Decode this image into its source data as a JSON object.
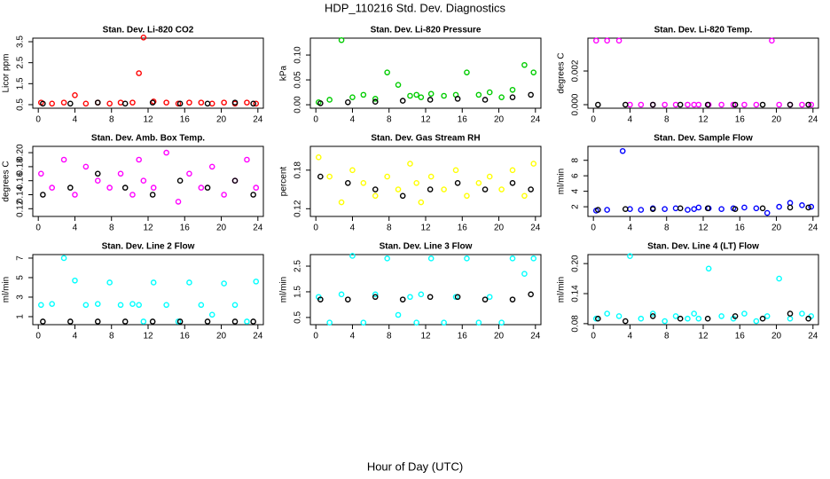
{
  "title": "HDP_110216  Std. Dev. Diagnostics",
  "x_label": "Hour of Day (UTC)",
  "chart_data": [
    {
      "type": "scatter",
      "title": "Stan. Dev. Li-820 CO2",
      "y_label": "Licor ppm",
      "xlim": [
        -0.6,
        24.6
      ],
      "xticks": [
        0,
        4,
        8,
        12,
        16,
        20,
        24
      ],
      "ylim": [
        0.33,
        3.67
      ],
      "yticks": [
        0.5,
        1.5,
        2.5,
        3.5
      ],
      "series": [
        {
          "color": "#ff0000",
          "x": [
            0.3,
            1.5,
            2.8,
            4,
            5.2,
            6.5,
            7.8,
            9,
            10.3,
            11,
            11.5,
            12.6,
            14,
            15.3,
            16.5,
            17.8,
            19,
            20.3,
            21.5,
            22.8,
            23.8
          ],
          "values": [
            0.6,
            0.55,
            0.6,
            0.95,
            0.55,
            0.6,
            0.55,
            0.6,
            0.6,
            2.0,
            3.7,
            0.65,
            0.6,
            0.55,
            0.6,
            0.6,
            0.55,
            0.6,
            0.55,
            0.6,
            0.55
          ]
        },
        {
          "color": "#000000",
          "x": [
            0.5,
            3.5,
            6.5,
            9.5,
            12.5,
            15.5,
            18.5,
            21.5,
            23.5
          ],
          "values": [
            0.55,
            0.55,
            0.6,
            0.55,
            0.6,
            0.55,
            0.55,
            0.6,
            0.55
          ]
        }
      ]
    },
    {
      "type": "scatter",
      "title": "Stan. Dev. Li-820 Pressure",
      "y_label": "kPa",
      "xlim": [
        -0.6,
        24.6
      ],
      "xticks": [
        0,
        4,
        8,
        12,
        16,
        20,
        24
      ],
      "ylim": [
        -0.007,
        0.134
      ],
      "yticks": [
        {
          "value": 0,
          "label": "0.00"
        },
        0.05,
        {
          "value": 0.1,
          "label": "0.10"
        }
      ],
      "series": [
        {
          "color": "#00cc00",
          "x": [
            0.3,
            1.5,
            2.8,
            4,
            5.2,
            6.5,
            7.8,
            9,
            10.3,
            11,
            11.5,
            12.6,
            14,
            15.3,
            16.5,
            17.8,
            19,
            20.3,
            21.5,
            22.8,
            23.8
          ],
          "values": [
            0.005,
            0.01,
            0.13,
            0.015,
            0.02,
            0.012,
            0.065,
            0.04,
            0.018,
            0.02,
            0.015,
            0.022,
            0.018,
            0.02,
            0.065,
            0.02,
            0.025,
            0.015,
            0.03,
            0.08,
            0.065
          ]
        },
        {
          "color": "#000000",
          "x": [
            0.5,
            3.5,
            6.5,
            9.5,
            12.5,
            15.5,
            18.5,
            21.5,
            23.5
          ],
          "values": [
            0.003,
            0.005,
            0.006,
            0.008,
            0.01,
            0.012,
            0.01,
            0.015,
            0.02
          ]
        }
      ]
    },
    {
      "type": "scatter",
      "title": "Stan. Dev. Li-820 Temp.",
      "y_label": "degrees C",
      "xlim": [
        -0.6,
        24.6
      ],
      "xticks": [
        0,
        4,
        8,
        12,
        16,
        20,
        24
      ],
      "ylim": [
        -0.00021,
        0.00395
      ],
      "yticks": [
        {
          "value": 0,
          "label": "0.000"
        },
        0.002
      ],
      "series": [
        {
          "color": "#ff00ff",
          "x": [
            0.3,
            1.5,
            2.8,
            4,
            5.2,
            6.5,
            7.8,
            9,
            10.3,
            11,
            11.5,
            12.6,
            14,
            15.3,
            16.5,
            17.8,
            19.5,
            20.3,
            21.5,
            22.8,
            23.8
          ],
          "values": [
            0.0038,
            0.0038,
            0.0038,
            0,
            0,
            0,
            0,
            0,
            0,
            0,
            0,
            0,
            0,
            0,
            0,
            0,
            0.0038,
            0,
            0,
            0,
            0
          ]
        },
        {
          "color": "#000000",
          "x": [
            0.5,
            3.5,
            6.5,
            9.5,
            12.5,
            15.5,
            18.5,
            21.5,
            23.5
          ],
          "values": [
            0,
            0,
            0,
            0,
            0,
            0,
            0,
            0,
            0
          ]
        }
      ]
    },
    {
      "type": "scatter",
      "title": "Stan. Dev. Amb. Box Temp.",
      "y_label": "degrees C",
      "xlim": [
        -0.6,
        24.6
      ],
      "xticks": [
        0,
        4,
        8,
        12,
        16,
        20,
        24
      ],
      "ylim": [
        0.109,
        0.209
      ],
      "yticks": [
        0.12,
        0.14,
        0.16,
        0.18,
        {
          "value": 0.2,
          "label": "0.20"
        }
      ],
      "series": [
        {
          "color": "#ff00ff",
          "x": [
            0.3,
            1.5,
            2.8,
            4,
            5.2,
            6.5,
            7.8,
            9,
            10.3,
            11,
            11.5,
            12.6,
            14,
            15.3,
            16.5,
            17.8,
            19,
            20.3,
            21.5,
            22.8,
            23.8
          ],
          "values": [
            0.17,
            0.15,
            0.19,
            0.14,
            0.18,
            0.16,
            0.15,
            0.17,
            0.14,
            0.19,
            0.16,
            0.15,
            0.2,
            0.13,
            0.17,
            0.15,
            0.18,
            0.14,
            0.16,
            0.19,
            0.15
          ]
        },
        {
          "color": "#000000",
          "x": [
            0.5,
            3.5,
            6.5,
            9.5,
            12.5,
            15.5,
            18.5,
            21.5,
            23.5
          ],
          "values": [
            0.14,
            0.15,
            0.17,
            0.15,
            0.14,
            0.16,
            0.15,
            0.16,
            0.14
          ]
        }
      ]
    },
    {
      "type": "scatter",
      "title": "Stan. Dev. Gas Stream RH",
      "y_label": "percent",
      "xlim": [
        -0.6,
        24.6
      ],
      "xticks": [
        0,
        4,
        8,
        12,
        16,
        20,
        24
      ],
      "ylim": [
        0.108,
        0.217
      ],
      "yticks": [
        0.12,
        0.18
      ],
      "series": [
        {
          "color": "#ffff00",
          "x": [
            0.3,
            1.5,
            2.8,
            4,
            5.2,
            6.5,
            7.8,
            9,
            10.3,
            11,
            11.5,
            12.6,
            14,
            15.3,
            16.5,
            17.8,
            19,
            20.3,
            21.5,
            22.8,
            23.8
          ],
          "values": [
            0.2,
            0.17,
            0.13,
            0.18,
            0.16,
            0.14,
            0.17,
            0.15,
            0.19,
            0.16,
            0.13,
            0.17,
            0.15,
            0.18,
            0.14,
            0.16,
            0.17,
            0.15,
            0.18,
            0.14,
            0.19
          ]
        },
        {
          "color": "#000000",
          "x": [
            0.5,
            3.5,
            6.5,
            9.5,
            12.5,
            15.5,
            18.5,
            21.5,
            23.5
          ],
          "values": [
            0.17,
            0.16,
            0.15,
            0.14,
            0.15,
            0.16,
            0.15,
            0.16,
            0.15
          ]
        }
      ]
    },
    {
      "type": "scatter",
      "title": "Stan. Dev. Sample Flow",
      "y_label": "ml/min",
      "xlim": [
        -0.6,
        24.6
      ],
      "xticks": [
        0,
        4,
        8,
        12,
        16,
        20,
        24
      ],
      "ylim": [
        0.75,
        9.8
      ],
      "yticks": [
        2,
        4,
        6,
        8
      ],
      "series": [
        {
          "color": "#0000ff",
          "x": [
            0.3,
            1.5,
            3.2,
            4,
            5.2,
            6.5,
            7.8,
            9,
            10.3,
            11,
            11.5,
            12.6,
            14,
            15.3,
            16.5,
            17.8,
            19,
            20.3,
            21.5,
            22.8,
            23.8
          ],
          "values": [
            1.5,
            1.6,
            9.2,
            1.7,
            1.6,
            1.8,
            1.7,
            1.8,
            1.6,
            1.7,
            1.9,
            1.8,
            1.7,
            1.8,
            1.9,
            1.8,
            1.2,
            2.0,
            2.5,
            2.2,
            2.0
          ]
        },
        {
          "color": "#000000",
          "x": [
            0.5,
            3.5,
            6.5,
            9.5,
            12.5,
            15.5,
            18.5,
            21.5,
            23.5
          ],
          "values": [
            1.6,
            1.7,
            1.7,
            1.8,
            1.8,
            1.7,
            1.8,
            1.9,
            1.9
          ]
        }
      ]
    },
    {
      "type": "scatter",
      "title": "Stan. Dev. Line 2 Flow",
      "y_label": "ml/min",
      "xlim": [
        -0.6,
        24.6
      ],
      "xticks": [
        0,
        4,
        8,
        12,
        16,
        20,
        24
      ],
      "ylim": [
        0.18,
        7.36
      ],
      "yticks": [
        1,
        3,
        5,
        7
      ],
      "series": [
        {
          "color": "#00ffff",
          "x": [
            0.3,
            1.5,
            2.8,
            4,
            5.2,
            6.5,
            7.8,
            9,
            10.3,
            11,
            11.5,
            12.6,
            14,
            15.3,
            16.5,
            17.8,
            19,
            20.3,
            21.5,
            22.8,
            23.8
          ],
          "values": [
            2.2,
            2.3,
            7.0,
            4.7,
            2.2,
            2.3,
            4.5,
            2.2,
            2.3,
            2.2,
            0.5,
            4.5,
            2.2,
            0.5,
            4.5,
            2.2,
            1.2,
            4.4,
            2.2,
            0.5,
            4.6
          ]
        },
        {
          "color": "#000000",
          "x": [
            0.5,
            3.5,
            6.5,
            9.5,
            12.5,
            15.5,
            18.5,
            21.5,
            23.5
          ],
          "values": [
            0.5,
            0.5,
            0.5,
            0.5,
            0.5,
            0.5,
            0.5,
            0.5,
            0.5
          ]
        }
      ]
    },
    {
      "type": "scatter",
      "title": "Stan. Dev. Line 3 Flow",
      "y_label": "ml/min",
      "xlim": [
        -0.6,
        24.6
      ],
      "xticks": [
        0,
        4,
        8,
        12,
        16,
        20,
        24
      ],
      "ylim": [
        0.22,
        2.95
      ],
      "yticks": [
        0.5,
        1.5,
        2.5
      ],
      "series": [
        {
          "color": "#00ffff",
          "x": [
            0.3,
            1.5,
            2.8,
            4,
            5.2,
            6.5,
            7.8,
            9,
            10.3,
            11,
            11.5,
            12.6,
            14,
            15.3,
            16.5,
            17.8,
            19,
            20.3,
            21.5,
            22.8,
            23.8
          ],
          "values": [
            1.3,
            0.3,
            1.4,
            2.9,
            0.3,
            1.4,
            2.8,
            0.6,
            1.3,
            0.3,
            1.4,
            2.8,
            0.3,
            1.3,
            2.8,
            0.3,
            1.3,
            0.3,
            2.8,
            2.2,
            2.8
          ]
        },
        {
          "color": "#000000",
          "x": [
            0.5,
            3.5,
            6.5,
            9.5,
            12.5,
            15.5,
            18.5,
            21.5,
            23.5
          ],
          "values": [
            1.2,
            1.2,
            1.3,
            1.2,
            1.3,
            1.3,
            1.2,
            1.2,
            1.4
          ]
        }
      ]
    },
    {
      "type": "scatter",
      "title": "Stan. Dev. Line 4 (LT) Flow",
      "y_label": "ml/min",
      "xlim": [
        -0.6,
        24.6
      ],
      "xticks": [
        0,
        4,
        8,
        12,
        16,
        20,
        24
      ],
      "ylim": [
        0.078,
        0.218
      ],
      "yticks": [
        0.08,
        0.14,
        {
          "value": 0.2,
          "label": "0.20"
        }
      ],
      "series": [
        {
          "color": "#00ffff",
          "x": [
            0.3,
            1.5,
            2.8,
            4,
            5.2,
            6.5,
            7.8,
            9,
            10.3,
            11,
            11.5,
            12.6,
            14,
            15.3,
            16.5,
            17.8,
            19,
            20.3,
            21.5,
            22.8,
            23.8
          ],
          "values": [
            0.09,
            0.1,
            0.095,
            0.215,
            0.09,
            0.1,
            0.085,
            0.095,
            0.09,
            0.1,
            0.09,
            0.19,
            0.095,
            0.09,
            0.1,
            0.085,
            0.095,
            0.17,
            0.09,
            0.1,
            0.095
          ]
        },
        {
          "color": "#000000",
          "x": [
            0.5,
            3.5,
            6.5,
            9.5,
            12.5,
            15.5,
            18.5,
            21.5,
            23.5
          ],
          "values": [
            0.09,
            0.085,
            0.095,
            0.09,
            0.09,
            0.095,
            0.09,
            0.1,
            0.09
          ]
        }
      ]
    }
  ]
}
